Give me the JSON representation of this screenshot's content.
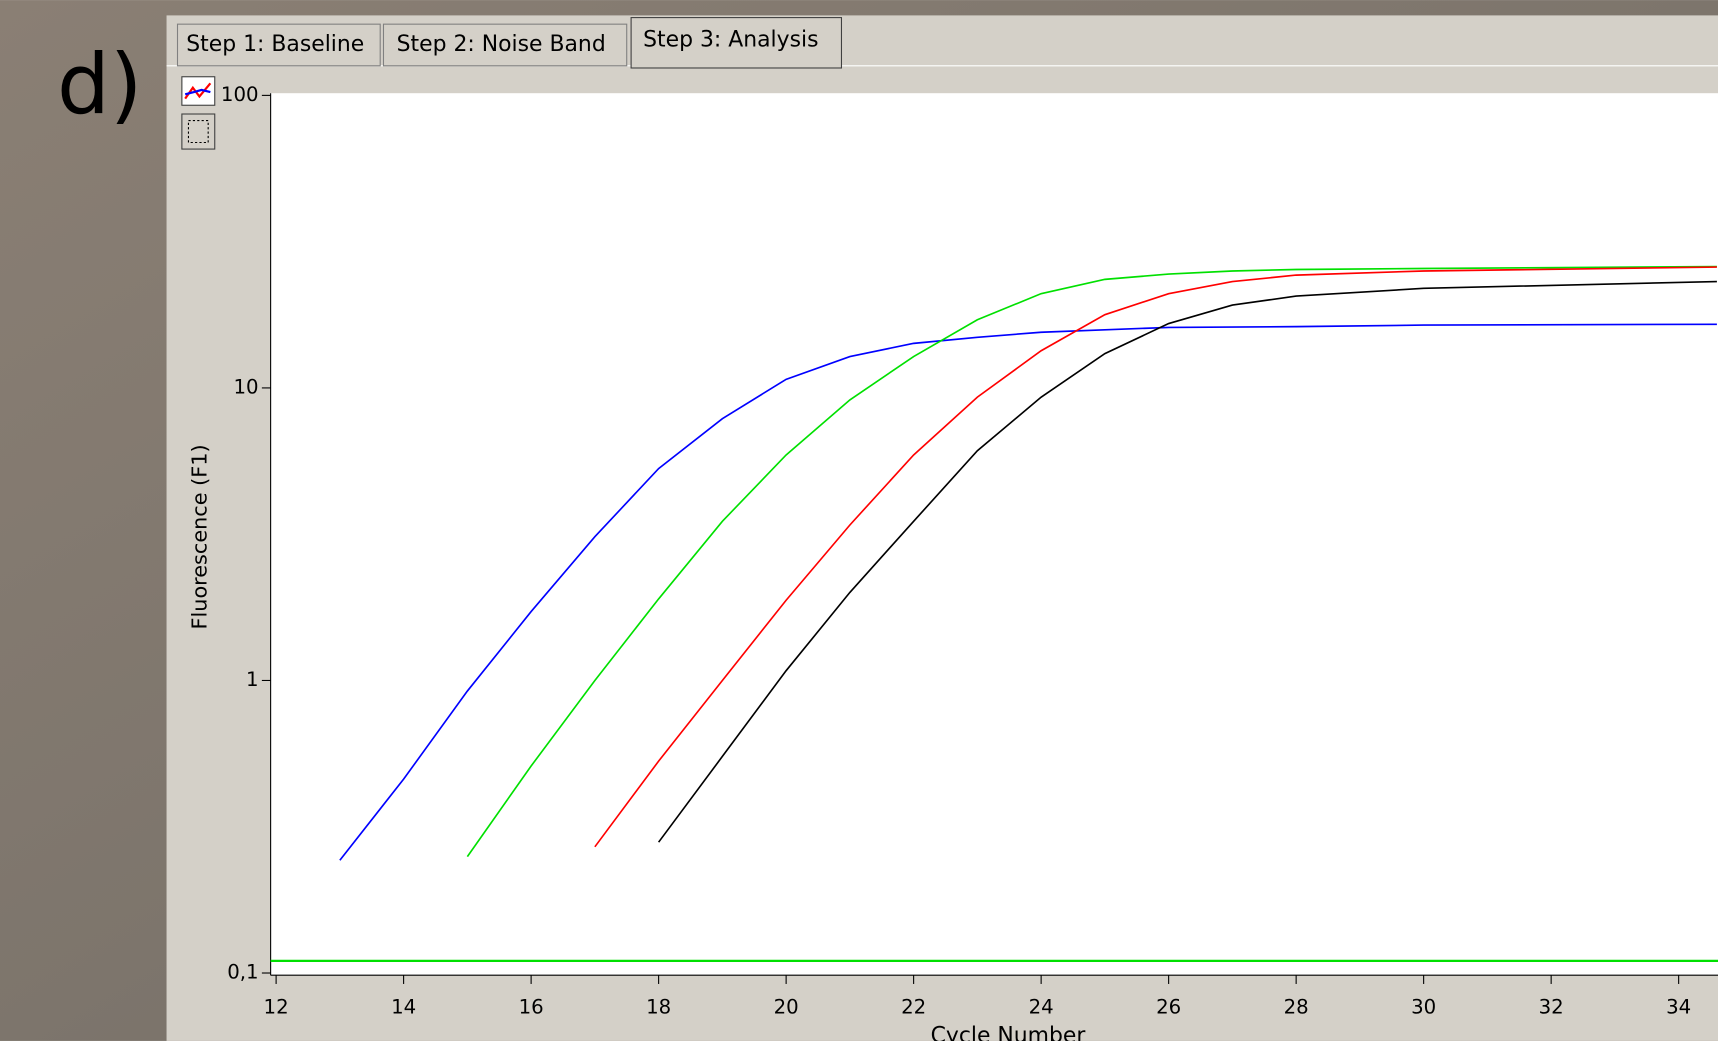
{
  "panel_label": "d)",
  "tabs": [
    "Step 1: Baseline",
    "Step 2: Noise Band",
    "Step 3: Analysis"
  ],
  "chart_data": {
    "type": "line",
    "x_label": "Cycle Number",
    "y_label": "Fluorescence (F1)",
    "log_y": true,
    "xlim": [
      12,
      34.6
    ],
    "ylim": [
      0.1,
      100
    ],
    "xticks": [
      12,
      14,
      16,
      18,
      20,
      22,
      24,
      26,
      28,
      30,
      32,
      34
    ],
    "yticks": [
      100,
      10,
      1,
      {
        "value": 0.1,
        "label": "0,1"
      }
    ],
    "threshold": {
      "value": 0.11,
      "color": "#00e000"
    },
    "series": [
      {
        "color": "#0000ff",
        "x": [
          13,
          14,
          15,
          16,
          17,
          18,
          19,
          20,
          21,
          22,
          23,
          24,
          25,
          26,
          28,
          30,
          34.6
        ],
        "values": [
          0.243,
          0.46,
          0.92,
          1.72,
          3.1,
          5.3,
          7.85,
          10.7,
          12.8,
          14.2,
          14.9,
          15.5,
          15.8,
          16.1,
          16.2,
          16.4,
          16.5
        ]
      },
      {
        "color": "#00e000",
        "x": [
          15,
          16,
          17,
          18,
          19,
          20,
          21,
          22,
          23,
          24,
          25,
          26,
          27,
          28,
          30,
          34.6
        ],
        "values": [
          0.25,
          0.51,
          1.0,
          1.9,
          3.5,
          5.9,
          9.1,
          12.8,
          17.1,
          21,
          23.5,
          24.5,
          25.1,
          25.4,
          25.6,
          26
        ]
      },
      {
        "color": "#ff0000",
        "x": [
          17,
          18,
          19,
          20,
          21,
          22,
          23,
          24,
          25,
          26,
          27,
          28,
          30,
          34.6
        ],
        "values": [
          0.27,
          0.53,
          1.0,
          1.88,
          3.4,
          5.9,
          9.3,
          13.4,
          17.8,
          21,
          23.1,
          24.3,
          25.1,
          25.9
        ]
      },
      {
        "color": "#000000",
        "x": [
          18,
          19,
          20,
          21,
          22,
          23,
          24,
          25,
          26,
          27,
          28,
          30,
          34.6
        ],
        "values": [
          0.28,
          0.55,
          1.08,
          2.0,
          3.5,
          6.1,
          9.3,
          13.1,
          16.6,
          19.2,
          20.6,
          21.9,
          23.1
        ]
      }
    ]
  }
}
